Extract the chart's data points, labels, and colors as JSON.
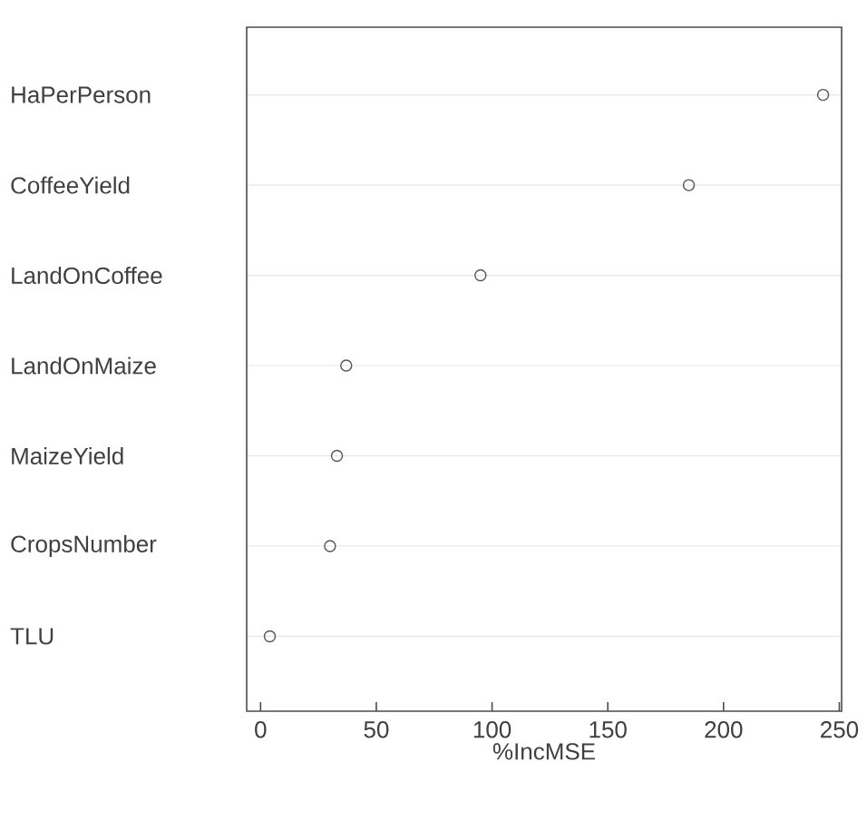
{
  "chart_data": {
    "type": "scatter",
    "orientation": "horizontal",
    "categories": [
      "HaPerPerson",
      "CoffeeYield",
      "LandOnCoffee",
      "LandOnMaize",
      "MaizeYield",
      "CropsNumber",
      "TLU"
    ],
    "values": [
      243,
      185,
      95,
      37,
      33,
      30,
      4
    ],
    "color": "#555555",
    "xlim": [
      -6,
      251
    ],
    "xticks": [
      0,
      50,
      100,
      150,
      200,
      250
    ],
    "xlabel": "%IncMSE",
    "grid": "y",
    "marker": "circle"
  }
}
